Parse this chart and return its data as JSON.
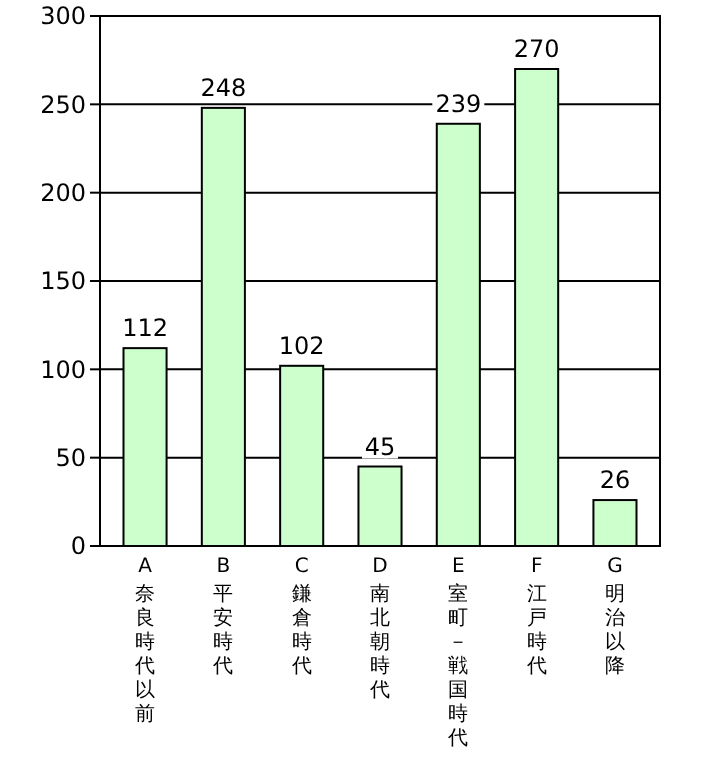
{
  "chart_data": {
    "type": "bar",
    "categories": [
      "A\n奈良時代以前",
      "B\n平安時代",
      "C\n鎌倉時代",
      "D\n南北朝時代",
      "E\n室町－戦国時代",
      "F\n江戸時代",
      "G\n明治以降"
    ],
    "values": [
      112,
      248,
      102,
      45,
      239,
      270,
      26
    ],
    "color": "#ccffcc",
    "ylim": [
      0,
      300
    ],
    "yticks": [
      0,
      50,
      100,
      150,
      200,
      250,
      300
    ],
    "grid": "y",
    "data_labels": true
  }
}
